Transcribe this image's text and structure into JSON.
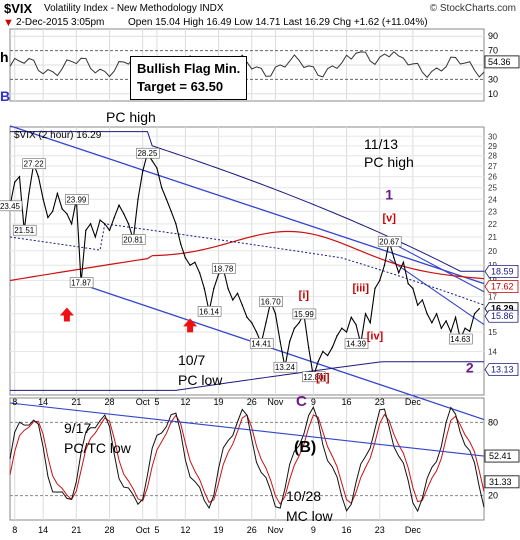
{
  "header": {
    "symbol": "$VIX",
    "name": "Volatility Index - New Methodology",
    "exchange": "INDX",
    "site": "© StockCharts.com",
    "datetime": "2-Dec-2015 3:05pm",
    "open_label": "Open",
    "open": "15.04",
    "high_label": "High",
    "high": "16.49",
    "low_label": "Low",
    "low": "14.71",
    "last_label": "Last",
    "last": "16.29",
    "chg_label": "Chg",
    "chg": "+1.62 (+11.04%)",
    "down_marker": "▼"
  },
  "rsi_panel": {
    "edge_label": "h",
    "ticks": [
      90,
      70,
      50,
      30,
      10
    ],
    "last_value": "54.36",
    "annotation_line1": "Bullish Flag Min.",
    "annotation_line2": "Target = 63.50"
  },
  "main_panel": {
    "legend": "$VIX (2 hour) 16.29",
    "edge_label": "B",
    "ticks": [
      30,
      29,
      28,
      27,
      26,
      25,
      24,
      23,
      22,
      21,
      20,
      19,
      18,
      17,
      16,
      15,
      14,
      13
    ],
    "right_labels": [
      {
        "text": "18.59",
        "value": 18.59,
        "color": "#1a1a80"
      },
      {
        "text": "17.62",
        "value": 17.62,
        "color": "#c00000"
      },
      {
        "text": "16.29",
        "value": 16.29,
        "color": "#000000"
      },
      {
        "text": "15.86",
        "value": 15.86,
        "color": "#1a1a80"
      },
      {
        "text": "13.13",
        "value": 13.13,
        "color": "#1a1a80"
      }
    ],
    "price_labels": [
      {
        "text": "27.22",
        "x": 5,
        "y": 27.22
      },
      {
        "text": "23.45",
        "x": 0,
        "y": 23.45
      },
      {
        "text": "21.51",
        "x": 3,
        "y": 21.51
      },
      {
        "text": "23.99",
        "x": 14,
        "y": 23.99
      },
      {
        "text": "17.87",
        "x": 15,
        "y": 17.87
      },
      {
        "text": "28.25",
        "x": 29,
        "y": 28.25
      },
      {
        "text": "20.81",
        "x": 26,
        "y": 20.81
      },
      {
        "text": "18.78",
        "x": 45,
        "y": 18.78
      },
      {
        "text": "16.14",
        "x": 42,
        "y": 16.14
      },
      {
        "text": "16.70",
        "x": 55,
        "y": 16.7
      },
      {
        "text": "15.99",
        "x": 62,
        "y": 15.99
      },
      {
        "text": "14.41",
        "x": 53,
        "y": 14.41
      },
      {
        "text": "13.24",
        "x": 58,
        "y": 13.24
      },
      {
        "text": "12.80",
        "x": 64,
        "y": 12.8
      },
      {
        "text": "14.39",
        "x": 73,
        "y": 14.39
      },
      {
        "text": "20.67",
        "x": 80,
        "y": 20.67
      },
      {
        "text": "14.63",
        "x": 95,
        "y": 14.63
      }
    ],
    "wave_labels": [
      {
        "text": "[i]",
        "x": 62,
        "y": 16.9,
        "color": "#cc0000"
      },
      {
        "text": "[iii]",
        "x": 74,
        "y": 17.3,
        "color": "#cc0000"
      },
      {
        "text": "[ii]",
        "x": 66,
        "y": 12.6,
        "color": "#cc0000"
      },
      {
        "text": "[iv]",
        "x": 77,
        "y": 14.6,
        "color": "#cc0000"
      },
      {
        "text": "[v]",
        "x": 80,
        "y": 22.2,
        "color": "#cc0000"
      },
      {
        "text": "1",
        "x": 80,
        "y": 24.0,
        "color": "#6a1a8a"
      },
      {
        "text": "2",
        "x": 97,
        "y": 13.0,
        "color": "#6a1a8a"
      }
    ],
    "annotations": {
      "pc_high_left": "PC high",
      "pc_high_date": "11/13",
      "pc_high_right": "PC high",
      "oct7_date": "10/7",
      "oct7_text": "PC low",
      "c_label": "C"
    }
  },
  "lower_panel": {
    "ticks": [
      80,
      20
    ],
    "last_label_1": "52.41",
    "last_label_2": "31.33",
    "ann_date_left": "9/17",
    "ann_text_left": "PC/TC low",
    "ann_b": "(B)",
    "ann_date_mid": "10/28",
    "ann_text_mid": "MC low"
  },
  "x_axis": {
    "labels": [
      {
        "text": "8",
        "x": 1
      },
      {
        "text": "14",
        "x": 7
      },
      {
        "text": "21",
        "x": 14
      },
      {
        "text": "28",
        "x": 21
      },
      {
        "text": "Oct",
        "x": 28
      },
      {
        "text": "5",
        "x": 31
      },
      {
        "text": "12",
        "x": 37
      },
      {
        "text": "19",
        "x": 44
      },
      {
        "text": "26",
        "x": 51
      },
      {
        "text": "Nov",
        "x": 56
      },
      {
        "text": "9",
        "x": 64
      },
      {
        "text": "16",
        "x": 71
      },
      {
        "text": "23",
        "x": 78
      },
      {
        "text": "Dec",
        "x": 85
      }
    ]
  },
  "chart_data": {
    "type": "line",
    "x_range": [
      0,
      100
    ],
    "y_range": [
      12,
      31
    ],
    "y_scale": "log",
    "series": [
      {
        "name": "$VIX (2 hour)",
        "color": "#000000",
        "points": [
          [
            0,
            23.45
          ],
          [
            1,
            25.5
          ],
          [
            2,
            26.0
          ],
          [
            3,
            21.51
          ],
          [
            4,
            24.5
          ],
          [
            5,
            27.22
          ],
          [
            6,
            26.0
          ],
          [
            7,
            24.0
          ],
          [
            8,
            22.5
          ],
          [
            9,
            23.0
          ],
          [
            10,
            24.5
          ],
          [
            11,
            23.2
          ],
          [
            12,
            22.8
          ],
          [
            13,
            22.0
          ],
          [
            14,
            23.99
          ],
          [
            15,
            17.87
          ],
          [
            16,
            21.5
          ],
          [
            17,
            22.0
          ],
          [
            18,
            21.0
          ],
          [
            19,
            22.3
          ],
          [
            20,
            22.0
          ],
          [
            21,
            21.5
          ],
          [
            22,
            22.5
          ],
          [
            23,
            23.5
          ],
          [
            24,
            22.8
          ],
          [
            25,
            22.0
          ],
          [
            26,
            20.81
          ],
          [
            27,
            24.0
          ],
          [
            28,
            26.5
          ],
          [
            29,
            28.25
          ],
          [
            30,
            27.5
          ],
          [
            31,
            26.8
          ],
          [
            32,
            25.0
          ],
          [
            33,
            24.0
          ],
          [
            34,
            23.0
          ],
          [
            35,
            22.0
          ],
          [
            36,
            20.5
          ],
          [
            37,
            19.5
          ],
          [
            38,
            19.0
          ],
          [
            39,
            19.2
          ],
          [
            40,
            18.5
          ],
          [
            41,
            17.5
          ],
          [
            42,
            16.14
          ],
          [
            43,
            17.5
          ],
          [
            44,
            18.4
          ],
          [
            45,
            18.78
          ],
          [
            46,
            17.5
          ],
          [
            47,
            16.8
          ],
          [
            48,
            17.2
          ],
          [
            49,
            16.5
          ],
          [
            50,
            15.8
          ],
          [
            51,
            15.5
          ],
          [
            52,
            15.0
          ],
          [
            53,
            14.41
          ],
          [
            54,
            15.5
          ],
          [
            55,
            16.7
          ],
          [
            56,
            16.0
          ],
          [
            57,
            14.5
          ],
          [
            58,
            13.24
          ],
          [
            59,
            14.5
          ],
          [
            60,
            15.2
          ],
          [
            61,
            15.5
          ],
          [
            62,
            15.99
          ],
          [
            63,
            14.2
          ],
          [
            64,
            12.8
          ],
          [
            65,
            13.5
          ],
          [
            66,
            14.0
          ],
          [
            67,
            13.8
          ],
          [
            68,
            14.2
          ],
          [
            69,
            14.8
          ],
          [
            70,
            15.2
          ],
          [
            71,
            15.0
          ],
          [
            72,
            15.8
          ],
          [
            73,
            15.4
          ],
          [
            74,
            14.39
          ],
          [
            75,
            16.0
          ],
          [
            76,
            15.5
          ],
          [
            77,
            17.5
          ],
          [
            78,
            18.0
          ],
          [
            79,
            19.0
          ],
          [
            80,
            20.67
          ],
          [
            81,
            19.5
          ],
          [
            82,
            18.5
          ],
          [
            83,
            19.2
          ],
          [
            84,
            17.8
          ],
          [
            85,
            17.5
          ],
          [
            86,
            16.5
          ],
          [
            87,
            16.8
          ],
          [
            88,
            16.0
          ],
          [
            89,
            15.5
          ],
          [
            90,
            16.0
          ],
          [
            91,
            15.2
          ],
          [
            92,
            15.6
          ],
          [
            93,
            15.0
          ],
          [
            94,
            15.8
          ],
          [
            95,
            14.63
          ],
          [
            96,
            15.2
          ],
          [
            97,
            15.04
          ],
          [
            98,
            16.0
          ],
          [
            99,
            16.29
          ]
        ]
      }
    ]
  }
}
